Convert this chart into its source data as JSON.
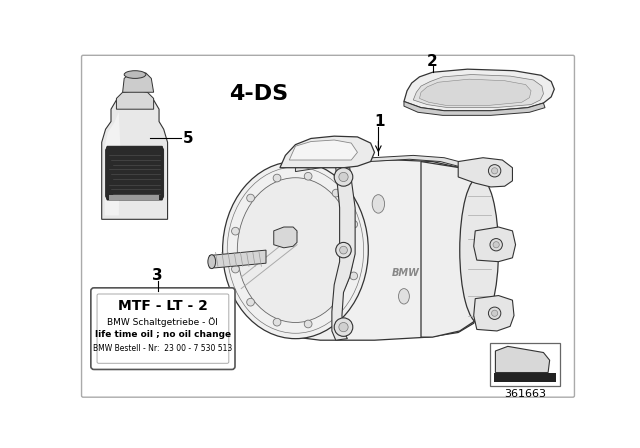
{
  "bg_color": "#ffffff",
  "label_4ds": "4-DS",
  "part_number": "361663",
  "label_box_text": [
    "MTF - LT - 2",
    "BMW Schaltgetriebe - Öl",
    "life time oil ; no oil change",
    "BMW Bestell - Nr:  23 00 - 7 530 513"
  ],
  "label_fontsizes": [
    10,
    6.5,
    6.5,
    5.5
  ],
  "label_fontweights": [
    "bold",
    "normal",
    "bold",
    "normal"
  ]
}
